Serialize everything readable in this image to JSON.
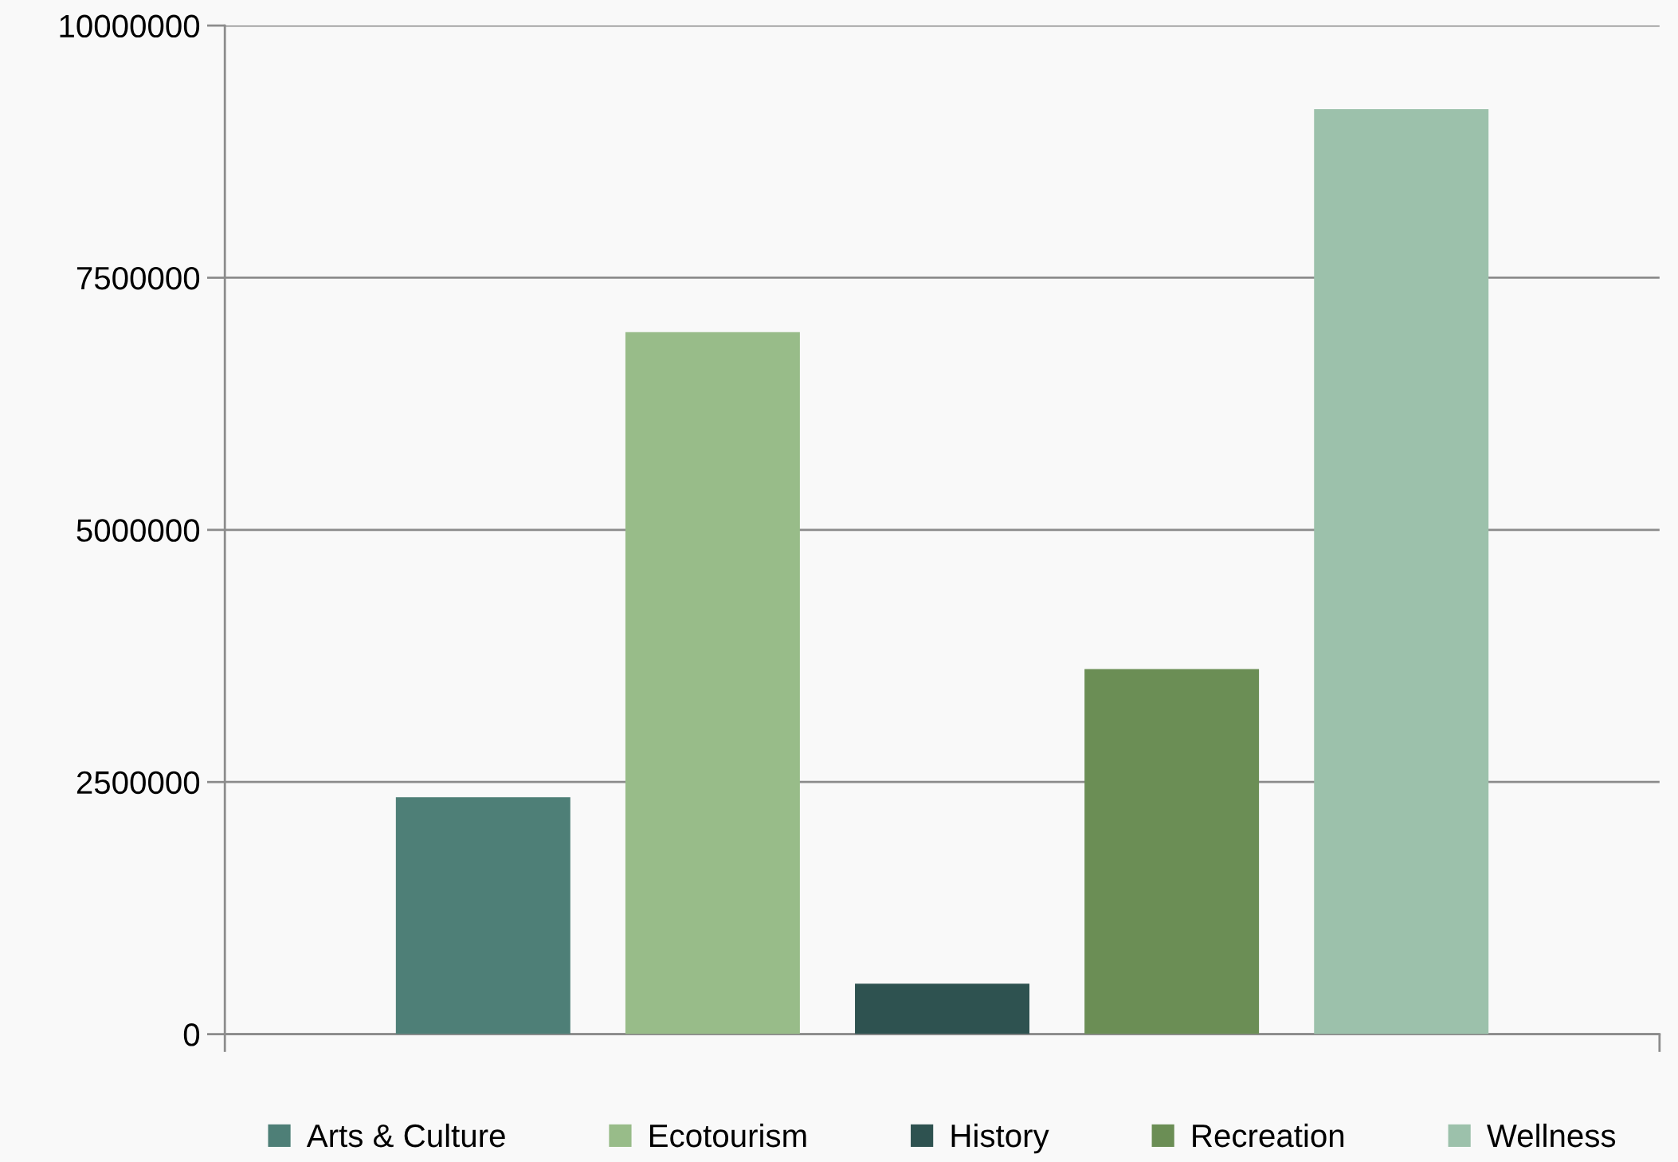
{
  "chart_data": {
    "type": "bar",
    "categories": [
      null
    ],
    "series": [
      {
        "name": "Arts & Culture",
        "color": "#4e7f77",
        "values": [
          2350000
        ]
      },
      {
        "name": "Ecotourism",
        "color": "#98bc89",
        "values": [
          6960000
        ]
      },
      {
        "name": "History",
        "color": "#2e5250",
        "values": [
          500000
        ]
      },
      {
        "name": "Recreation",
        "color": "#6b8e55",
        "values": [
          3620000
        ]
      },
      {
        "name": "Wellness",
        "color": "#9cc1ab",
        "values": [
          9170000
        ]
      }
    ],
    "ylim": [
      0,
      10000000
    ],
    "yticks": [
      0,
      2500000,
      5000000,
      7500000,
      10000000
    ],
    "grid": "y",
    "legend": "bottom"
  }
}
